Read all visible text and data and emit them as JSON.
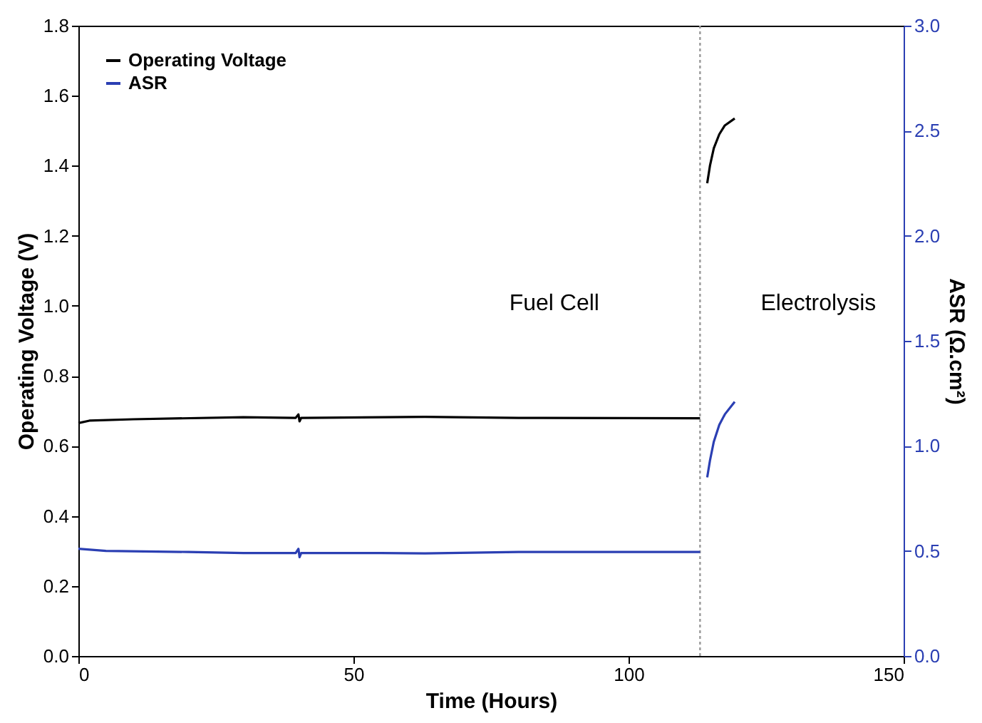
{
  "chart_data": {
    "type": "line",
    "xlabel": "Time (Hours)",
    "ylabel": "Operating Voltage (V)",
    "y2label": "ASR (Ω.cm²)",
    "xlim": [
      0,
      150
    ],
    "xticks": [
      0,
      50,
      100,
      150
    ],
    "ylim": [
      0,
      1.8
    ],
    "yticks": [
      {
        "value": 0,
        "label": "0.0"
      },
      0.2,
      0.4,
      0.6,
      0.8,
      {
        "value": 1,
        "label": "1.0"
      },
      1.2,
      1.4,
      1.6,
      1.8
    ],
    "y2lim": [
      0,
      3.0
    ],
    "y2ticks": [
      {
        "value": 0,
        "label": "0.0"
      },
      0.5,
      {
        "value": 1,
        "label": "1.0"
      },
      1.5,
      {
        "value": 2,
        "label": "2.0"
      },
      2.5,
      {
        "value": 3,
        "label": "3.0"
      }
    ],
    "legend": "top left",
    "grid": false,
    "ref_lines": [
      {
        "axis": "x",
        "value": 113,
        "color": "#999999",
        "line_style": "dotted"
      }
    ],
    "annotations": [
      "Fuel Cell",
      "Electrolysis"
    ],
    "series": [
      {
        "name": "Operating Voltage",
        "color": "#000000",
        "x": [
          0,
          2,
          10,
          30,
          39.5,
          40,
          40.2,
          40.5,
          63,
          80,
          113,
          113.5,
          114.3,
          114.8,
          115.5,
          116.5,
          117.5,
          119.3
        ],
        "values": [
          0.665,
          0.672,
          0.676,
          0.682,
          0.68,
          0.69,
          0.67,
          0.68,
          0.683,
          0.68,
          0.679,
          null,
          1.35,
          1.4,
          1.45,
          1.49,
          1.515,
          1.535
        ]
      },
      {
        "name": "ASR",
        "color": "#2b3fb3",
        "axis": "y2",
        "x": [
          0,
          5,
          20,
          30,
          39.5,
          40,
          40.2,
          40.5,
          55,
          63,
          80,
          113,
          113.5,
          114.3,
          114.8,
          115.5,
          116.5,
          117.5,
          119.3
        ],
        "values": [
          0.51,
          0.5,
          0.495,
          0.49,
          0.49,
          0.51,
          0.47,
          0.49,
          0.49,
          0.488,
          0.495,
          0.495,
          null,
          0.85,
          0.93,
          1.02,
          1.1,
          1.15,
          1.21
        ]
      }
    ]
  }
}
